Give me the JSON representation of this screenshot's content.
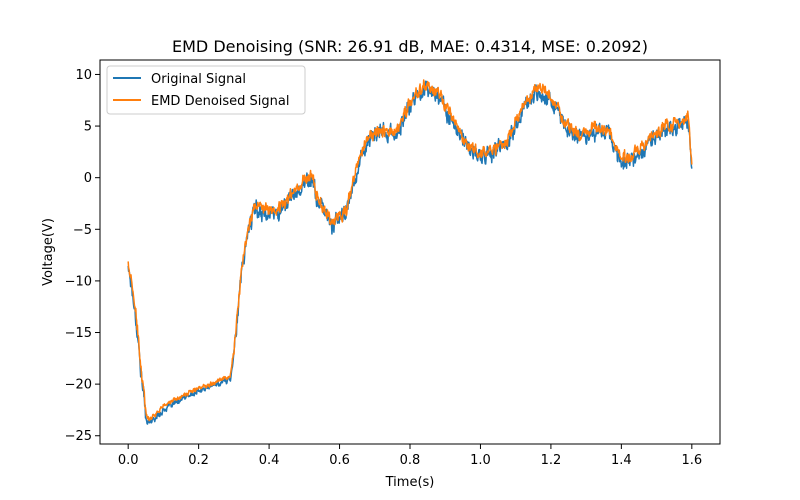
{
  "chart_data": {
    "type": "line",
    "title": "EMD Denoising (SNR: 26.91 dB, MAE: 0.4314, MSE: 0.2092)",
    "xlabel": "Time(s)",
    "ylabel": "Voltage(V)",
    "xlim": [
      -0.08,
      1.68
    ],
    "ylim": [
      -25.8,
      11.4
    ],
    "xticks": [
      0.0,
      0.2,
      0.4,
      0.6,
      0.8,
      1.0,
      1.2,
      1.4,
      1.6
    ],
    "xtick_labels": [
      "0.0",
      "0.2",
      "0.4",
      "0.6",
      "0.8",
      "1.0",
      "1.2",
      "1.4",
      "1.6"
    ],
    "yticks": [
      10,
      5,
      0,
      -5,
      -10,
      -15,
      -20,
      -25
    ],
    "ytick_labels": [
      "10",
      "5",
      "0",
      "−5",
      "−10",
      "−15",
      "−20",
      "−25"
    ],
    "grid": false,
    "legend_position": "top-left",
    "series": [
      {
        "name": "Original Signal",
        "color": "#1f77b4",
        "noise_amplitude": 1.2,
        "x": [
          0.0,
          0.01,
          0.02,
          0.03,
          0.04,
          0.05,
          0.055,
          0.07,
          0.1,
          0.15,
          0.2,
          0.25,
          0.29,
          0.3,
          0.32,
          0.34,
          0.36,
          0.38,
          0.42,
          0.46,
          0.5,
          0.52,
          0.54,
          0.56,
          0.58,
          0.6,
          0.62,
          0.64,
          0.66,
          0.68,
          0.72,
          0.76,
          0.8,
          0.84,
          0.88,
          0.92,
          0.96,
          1.0,
          1.04,
          1.08,
          1.12,
          1.16,
          1.2,
          1.24,
          1.28,
          1.32,
          1.36,
          1.4,
          1.44,
          1.48,
          1.52,
          1.56,
          1.59,
          1.6
        ],
        "y": [
          -8.5,
          -10.5,
          -13.0,
          -16.5,
          -20.0,
          -23.0,
          -23.8,
          -23.5,
          -22.5,
          -21.5,
          -20.7,
          -20.0,
          -19.5,
          -17.0,
          -10.0,
          -5.0,
          -3.0,
          -3.3,
          -3.5,
          -2.0,
          -0.5,
          0.0,
          -2.5,
          -3.5,
          -4.5,
          -4.0,
          -3.5,
          -0.5,
          2.0,
          3.5,
          4.5,
          4.0,
          7.0,
          8.8,
          8.0,
          5.5,
          3.0,
          2.0,
          2.5,
          3.5,
          6.5,
          8.5,
          7.5,
          5.0,
          4.0,
          4.5,
          4.5,
          1.5,
          2.0,
          3.5,
          4.5,
          5.0,
          5.5,
          1.0
        ]
      },
      {
        "name": "EMD Denoised Signal",
        "color": "#ff7f0e",
        "noise_amplitude": 0.9,
        "x": [
          0.0,
          0.01,
          0.02,
          0.03,
          0.04,
          0.05,
          0.055,
          0.07,
          0.1,
          0.15,
          0.2,
          0.25,
          0.29,
          0.3,
          0.32,
          0.34,
          0.36,
          0.38,
          0.42,
          0.46,
          0.5,
          0.52,
          0.54,
          0.56,
          0.58,
          0.6,
          0.62,
          0.64,
          0.66,
          0.68,
          0.72,
          0.76,
          0.8,
          0.84,
          0.88,
          0.92,
          0.96,
          1.0,
          1.04,
          1.08,
          1.12,
          1.16,
          1.2,
          1.24,
          1.28,
          1.32,
          1.36,
          1.4,
          1.44,
          1.48,
          1.52,
          1.56,
          1.59,
          1.6
        ],
        "y": [
          -8.2,
          -10.3,
          -12.8,
          -16.2,
          -19.7,
          -22.7,
          -23.4,
          -23.1,
          -22.1,
          -21.2,
          -20.4,
          -19.7,
          -19.2,
          -16.7,
          -9.7,
          -4.7,
          -2.7,
          -3.0,
          -3.2,
          -1.7,
          -0.2,
          0.3,
          -2.2,
          -3.2,
          -4.2,
          -3.7,
          -3.2,
          -0.2,
          2.3,
          3.8,
          4.8,
          4.3,
          7.3,
          9.0,
          8.2,
          5.8,
          3.3,
          2.3,
          2.8,
          3.8,
          6.8,
          8.7,
          7.8,
          5.3,
          4.3,
          4.8,
          4.8,
          1.8,
          2.3,
          3.8,
          4.8,
          5.3,
          5.8,
          1.2
        ]
      }
    ]
  }
}
